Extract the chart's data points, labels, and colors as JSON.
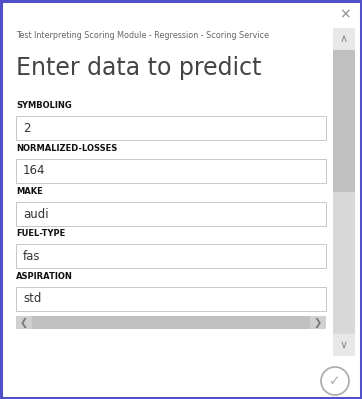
{
  "title": "Test Interpreting Scoring Module - Regression - Scoring Service",
  "heading": "Enter data to predict",
  "fields": [
    {
      "label": "SYMBOLING",
      "value": "2"
    },
    {
      "label": "NORMALIZED-LOSSES",
      "value": "164"
    },
    {
      "label": "MAKE",
      "value": "audi"
    },
    {
      "label": "FUEL-TYPE",
      "value": "fas"
    },
    {
      "label": "ASPIRATION",
      "value": "std"
    }
  ],
  "bg_color": "#ffffff",
  "border_color": "#5050c8",
  "field_border_color": "#c8c8c8",
  "field_bg_color": "#ffffff",
  "label_color": "#111111",
  "title_color": "#666666",
  "heading_color": "#444444",
  "scrollbar_bg": "#e8e8e8",
  "scrollbar_thumb": "#c0c0c0",
  "scrollbar_dotted": "#d8d8d8",
  "arrow_color": "#888888",
  "close_x_color": "#888888",
  "check_color": "#aaaaaa",
  "hscroll_bg": "#d0d0d0",
  "hscroll_thumb": "#c0c0c0"
}
